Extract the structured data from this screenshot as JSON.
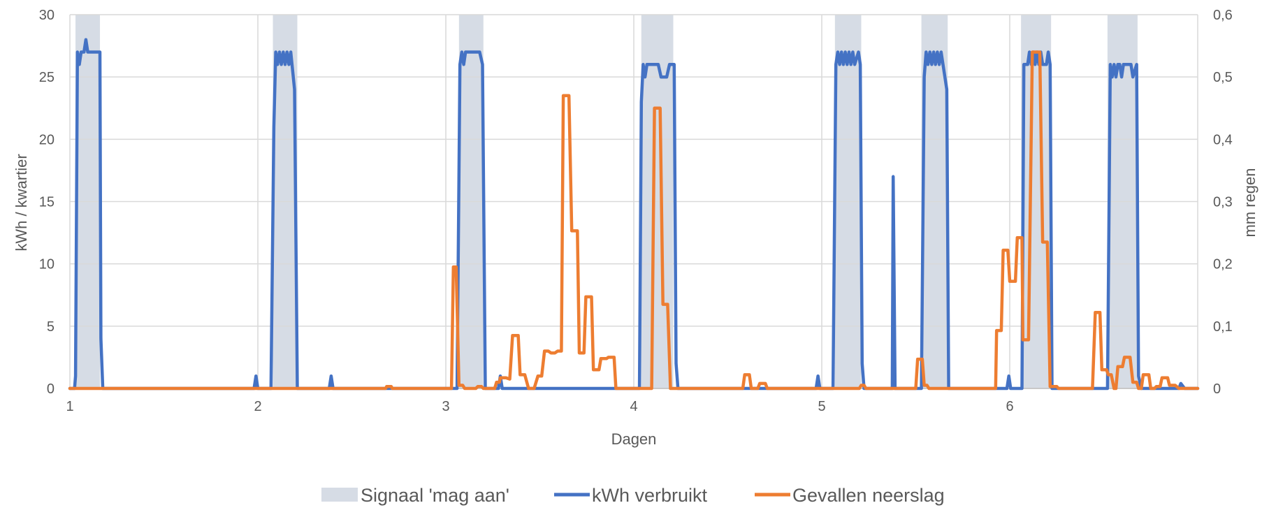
{
  "chart_data": {
    "type": "line",
    "title": "",
    "xlabel": "Dagen",
    "ylabel_left": "kWh / kwartier",
    "ylabel_right": "mm regen",
    "xlim": [
      1,
      7
    ],
    "x_ticks": [
      1,
      2,
      3,
      4,
      5,
      6
    ],
    "x_tick_labels": [
      "1",
      "2",
      "3",
      "4",
      "5",
      "6"
    ],
    "ylim_left": [
      0,
      30
    ],
    "y_left_ticks": [
      0,
      5,
      10,
      15,
      20,
      25,
      30
    ],
    "y_left_tick_labels": [
      "0",
      "5",
      "10",
      "15",
      "20",
      "25",
      "30"
    ],
    "ylim_right": [
      0,
      0.6
    ],
    "y_right_ticks": [
      0,
      0.1,
      0.2,
      0.3,
      0.4,
      0.5,
      0.6
    ],
    "y_right_tick_labels": [
      "0",
      "0,1",
      "0,2",
      "0,3",
      "0,4",
      "0,5",
      "0,6"
    ],
    "grid": true,
    "legend_position": "bottom",
    "series": [
      {
        "name": "Signaal 'mag aan'",
        "kind": "shaded-intervals",
        "color": "#d6dce5",
        "intervals": [
          [
            1.03,
            1.16
          ],
          [
            2.08,
            2.21
          ],
          [
            3.07,
            3.2
          ],
          [
            4.04,
            4.21
          ],
          [
            5.07,
            5.21
          ],
          [
            5.53,
            5.67
          ],
          [
            6.06,
            6.22
          ],
          [
            6.52,
            6.68
          ]
        ]
      },
      {
        "name": "kWh verbruikt",
        "axis": "left",
        "color": "#4472c4",
        "points": [
          [
            1.0,
            0
          ],
          [
            1.025,
            0
          ],
          [
            1.03,
            1
          ],
          [
            1.04,
            27
          ],
          [
            1.05,
            26
          ],
          [
            1.06,
            27
          ],
          [
            1.075,
            27
          ],
          [
            1.085,
            28
          ],
          [
            1.095,
            27
          ],
          [
            1.15,
            27
          ],
          [
            1.16,
            27
          ],
          [
            1.165,
            4
          ],
          [
            1.175,
            0
          ],
          [
            1.98,
            0
          ],
          [
            1.99,
            1
          ],
          [
            2.0,
            0
          ],
          [
            2.07,
            0
          ],
          [
            2.085,
            21
          ],
          [
            2.095,
            27
          ],
          [
            2.105,
            26
          ],
          [
            2.115,
            27
          ],
          [
            2.125,
            26
          ],
          [
            2.135,
            27
          ],
          [
            2.145,
            26
          ],
          [
            2.155,
            27
          ],
          [
            2.165,
            26
          ],
          [
            2.175,
            27
          ],
          [
            2.195,
            24
          ],
          [
            2.21,
            0
          ],
          [
            2.38,
            0
          ],
          [
            2.39,
            1
          ],
          [
            2.4,
            0
          ],
          [
            3.06,
            0
          ],
          [
            3.075,
            26
          ],
          [
            3.085,
            27
          ],
          [
            3.095,
            26
          ],
          [
            3.105,
            27
          ],
          [
            3.18,
            27
          ],
          [
            3.195,
            26
          ],
          [
            3.21,
            0
          ],
          [
            3.28,
            0
          ],
          [
            3.29,
            1
          ],
          [
            3.3,
            0
          ],
          [
            4.03,
            0
          ],
          [
            4.04,
            23
          ],
          [
            4.05,
            26
          ],
          [
            4.06,
            25
          ],
          [
            4.07,
            26
          ],
          [
            4.13,
            26
          ],
          [
            4.145,
            25
          ],
          [
            4.175,
            25
          ],
          [
            4.19,
            26
          ],
          [
            4.215,
            26
          ],
          [
            4.225,
            2
          ],
          [
            4.235,
            0
          ],
          [
            4.97,
            0
          ],
          [
            4.98,
            1
          ],
          [
            4.99,
            0
          ],
          [
            5.06,
            0
          ],
          [
            5.075,
            26
          ],
          [
            5.085,
            27
          ],
          [
            5.095,
            26
          ],
          [
            5.105,
            27
          ],
          [
            5.115,
            26
          ],
          [
            5.125,
            27
          ],
          [
            5.135,
            26
          ],
          [
            5.145,
            27
          ],
          [
            5.155,
            26
          ],
          [
            5.165,
            27
          ],
          [
            5.175,
            26
          ],
          [
            5.195,
            27
          ],
          [
            5.205,
            26
          ],
          [
            5.215,
            2
          ],
          [
            5.225,
            0
          ],
          [
            5.375,
            0
          ],
          [
            5.38,
            17
          ],
          [
            5.39,
            0
          ],
          [
            5.53,
            0
          ],
          [
            5.545,
            25
          ],
          [
            5.555,
            27
          ],
          [
            5.565,
            26
          ],
          [
            5.575,
            27
          ],
          [
            5.585,
            26
          ],
          [
            5.595,
            27
          ],
          [
            5.605,
            26
          ],
          [
            5.615,
            27
          ],
          [
            5.625,
            26
          ],
          [
            5.635,
            27
          ],
          [
            5.645,
            26
          ],
          [
            5.665,
            24
          ],
          [
            5.675,
            0
          ],
          [
            5.985,
            0
          ],
          [
            5.995,
            1
          ],
          [
            6.005,
            0
          ],
          [
            6.065,
            0
          ],
          [
            6.075,
            26
          ],
          [
            6.095,
            26
          ],
          [
            6.105,
            27
          ],
          [
            6.115,
            26
          ],
          [
            6.125,
            27
          ],
          [
            6.135,
            26
          ],
          [
            6.145,
            27
          ],
          [
            6.155,
            26
          ],
          [
            6.165,
            27
          ],
          [
            6.175,
            26
          ],
          [
            6.195,
            26
          ],
          [
            6.205,
            27
          ],
          [
            6.215,
            26
          ],
          [
            6.225,
            0
          ],
          [
            6.52,
            0
          ],
          [
            6.535,
            26
          ],
          [
            6.545,
            25
          ],
          [
            6.555,
            26
          ],
          [
            6.565,
            25
          ],
          [
            6.575,
            26
          ],
          [
            6.585,
            26
          ],
          [
            6.595,
            25
          ],
          [
            6.605,
            26
          ],
          [
            6.645,
            26
          ],
          [
            6.655,
            25
          ],
          [
            6.675,
            26
          ],
          [
            6.685,
            1
          ],
          [
            6.7,
            0
          ],
          [
            6.9,
            0
          ],
          [
            6.91,
            0.4
          ],
          [
            6.93,
            0
          ],
          [
            7.0,
            0
          ]
        ]
      },
      {
        "name": "Gevallen neerslag",
        "axis": "right",
        "color": "#ed7d31",
        "points": [
          [
            1.0,
            0
          ],
          [
            2.68,
            0
          ],
          [
            2.685,
            0.003
          ],
          [
            2.71,
            0.003
          ],
          [
            2.715,
            0
          ],
          [
            3.03,
            0
          ],
          [
            3.04,
            0.195
          ],
          [
            3.055,
            0.195
          ],
          [
            3.07,
            0.005
          ],
          [
            3.09,
            0.005
          ],
          [
            3.1,
            0
          ],
          [
            3.16,
            0
          ],
          [
            3.17,
            0.003
          ],
          [
            3.19,
            0.003
          ],
          [
            3.2,
            0
          ],
          [
            3.26,
            0
          ],
          [
            3.27,
            0.01
          ],
          [
            3.285,
            0.01
          ],
          [
            3.29,
            0.017
          ],
          [
            3.32,
            0.017
          ],
          [
            3.34,
            0.015
          ],
          [
            3.355,
            0.085
          ],
          [
            3.385,
            0.085
          ],
          [
            3.395,
            0.022
          ],
          [
            3.42,
            0.022
          ],
          [
            3.44,
            0
          ],
          [
            3.47,
            0
          ],
          [
            3.49,
            0.02
          ],
          [
            3.51,
            0.02
          ],
          [
            3.525,
            0.06
          ],
          [
            3.545,
            0.06
          ],
          [
            3.56,
            0.057
          ],
          [
            3.58,
            0.057
          ],
          [
            3.595,
            0.06
          ],
          [
            3.615,
            0.06
          ],
          [
            3.625,
            0.47
          ],
          [
            3.655,
            0.47
          ],
          [
            3.67,
            0.253
          ],
          [
            3.7,
            0.253
          ],
          [
            3.71,
            0.057
          ],
          [
            3.735,
            0.057
          ],
          [
            3.745,
            0.147
          ],
          [
            3.775,
            0.147
          ],
          [
            3.785,
            0.03
          ],
          [
            3.815,
            0.03
          ],
          [
            3.825,
            0.048
          ],
          [
            3.855,
            0.048
          ],
          [
            3.865,
            0.05
          ],
          [
            3.895,
            0.05
          ],
          [
            3.905,
            0
          ],
          [
            4.095,
            0
          ],
          [
            4.11,
            0.45
          ],
          [
            4.14,
            0.45
          ],
          [
            4.155,
            0.135
          ],
          [
            4.18,
            0.135
          ],
          [
            4.195,
            0
          ],
          [
            4.58,
            0
          ],
          [
            4.59,
            0.022
          ],
          [
            4.615,
            0.022
          ],
          [
            4.625,
            0
          ],
          [
            4.66,
            0
          ],
          [
            4.67,
            0.008
          ],
          [
            4.7,
            0.008
          ],
          [
            4.71,
            0
          ],
          [
            5.2,
            0
          ],
          [
            5.21,
            0.005
          ],
          [
            5.225,
            0.005
          ],
          [
            5.235,
            0
          ],
          [
            5.5,
            0
          ],
          [
            5.51,
            0.047
          ],
          [
            5.535,
            0.047
          ],
          [
            5.545,
            0.005
          ],
          [
            5.56,
            0.005
          ],
          [
            5.57,
            0
          ],
          [
            5.925,
            0
          ],
          [
            5.93,
            0.093
          ],
          [
            5.955,
            0.093
          ],
          [
            5.965,
            0.222
          ],
          [
            5.99,
            0.222
          ],
          [
            6.0,
            0.172
          ],
          [
            6.03,
            0.172
          ],
          [
            6.04,
            0.242
          ],
          [
            6.065,
            0.242
          ],
          [
            6.07,
            0.078
          ],
          [
            6.1,
            0.078
          ],
          [
            6.12,
            0.54
          ],
          [
            6.16,
            0.54
          ],
          [
            6.175,
            0.235
          ],
          [
            6.2,
            0.235
          ],
          [
            6.215,
            0.003
          ],
          [
            6.25,
            0.003
          ],
          [
            6.26,
            0
          ],
          [
            6.44,
            0
          ],
          [
            6.455,
            0.122
          ],
          [
            6.48,
            0.122
          ],
          [
            6.49,
            0.03
          ],
          [
            6.515,
            0.03
          ],
          [
            6.525,
            0.022
          ],
          [
            6.54,
            0.022
          ],
          [
            6.555,
            0
          ],
          [
            6.565,
            0
          ],
          [
            6.575,
            0.035
          ],
          [
            6.6,
            0.035
          ],
          [
            6.61,
            0.05
          ],
          [
            6.64,
            0.05
          ],
          [
            6.655,
            0.01
          ],
          [
            6.675,
            0.01
          ],
          [
            6.685,
            0
          ],
          [
            6.7,
            0
          ],
          [
            6.71,
            0.022
          ],
          [
            6.74,
            0.022
          ],
          [
            6.75,
            0
          ],
          [
            6.77,
            0
          ],
          [
            6.78,
            0.003
          ],
          [
            6.8,
            0.003
          ],
          [
            6.81,
            0.017
          ],
          [
            6.84,
            0.017
          ],
          [
            6.85,
            0.005
          ],
          [
            6.88,
            0.005
          ],
          [
            6.9,
            0
          ],
          [
            7.0,
            0
          ]
        ]
      }
    ]
  }
}
